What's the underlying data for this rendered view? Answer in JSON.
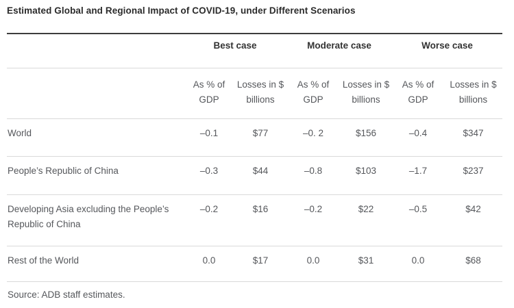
{
  "title": "Estimated Global and Regional Impact of COVID-19, under Different Scenarios",
  "table": {
    "scenario_headers": [
      "Best case",
      "Moderate case",
      "Worse case"
    ],
    "sub_headers": [
      "As % of GDP",
      "Losses in $ billions",
      "As % of GDP",
      "Losses in $ billions",
      "As % of GDP",
      "Losses in $ billions"
    ],
    "rows": [
      {
        "label": "World",
        "values": [
          "–0.1",
          "$77",
          "–0. 2",
          "$156",
          "–0.4",
          "$347"
        ]
      },
      {
        "label": "People’s Republic of China",
        "values": [
          "–0.3",
          "$44",
          "–0.8",
          "$103",
          "–1.7",
          "$237"
        ]
      },
      {
        "label": "Developing Asia excluding the People’s Republic of China",
        "values": [
          "–0.2",
          "$16",
          "–0.2",
          "$22",
          "–0.5",
          "$42"
        ]
      },
      {
        "label": "Rest of the World",
        "values": [
          "0.0",
          "$17",
          "0.0",
          "$31",
          "0.0",
          "$68"
        ]
      }
    ]
  },
  "source": "Source: ADB staff estimates.",
  "colors": {
    "title_text": "#2b2b2b",
    "body_text": "#55575b",
    "heading_text": "#333333",
    "top_rule": "#3d3d3d",
    "divider": "#d9d9d9"
  },
  "chart_data": {
    "type": "table",
    "title": "Estimated Global and Regional Impact of COVID-19, under Different Scenarios",
    "column_groups": [
      "Best case",
      "Moderate case",
      "Worse case"
    ],
    "columns": [
      "As % of GDP",
      "Losses in $ billions",
      "As % of GDP",
      "Losses in $ billions",
      "As % of GDP",
      "Losses in $ billions"
    ],
    "rows": [
      {
        "region": "World",
        "values": [
          -0.1,
          77,
          -0.2,
          156,
          -0.4,
          347
        ]
      },
      {
        "region": "People’s Republic of China",
        "values": [
          -0.3,
          44,
          -0.8,
          103,
          -1.7,
          237
        ]
      },
      {
        "region": "Developing Asia excluding the People’s Republic of China",
        "values": [
          -0.2,
          16,
          -0.2,
          22,
          -0.5,
          42
        ]
      },
      {
        "region": "Rest of the World",
        "values": [
          0.0,
          17,
          0.0,
          31,
          0.0,
          68
        ]
      }
    ],
    "units": {
      "pct_columns": "% of GDP",
      "loss_columns": "$ billions"
    },
    "source": "Source: ADB staff estimates."
  }
}
